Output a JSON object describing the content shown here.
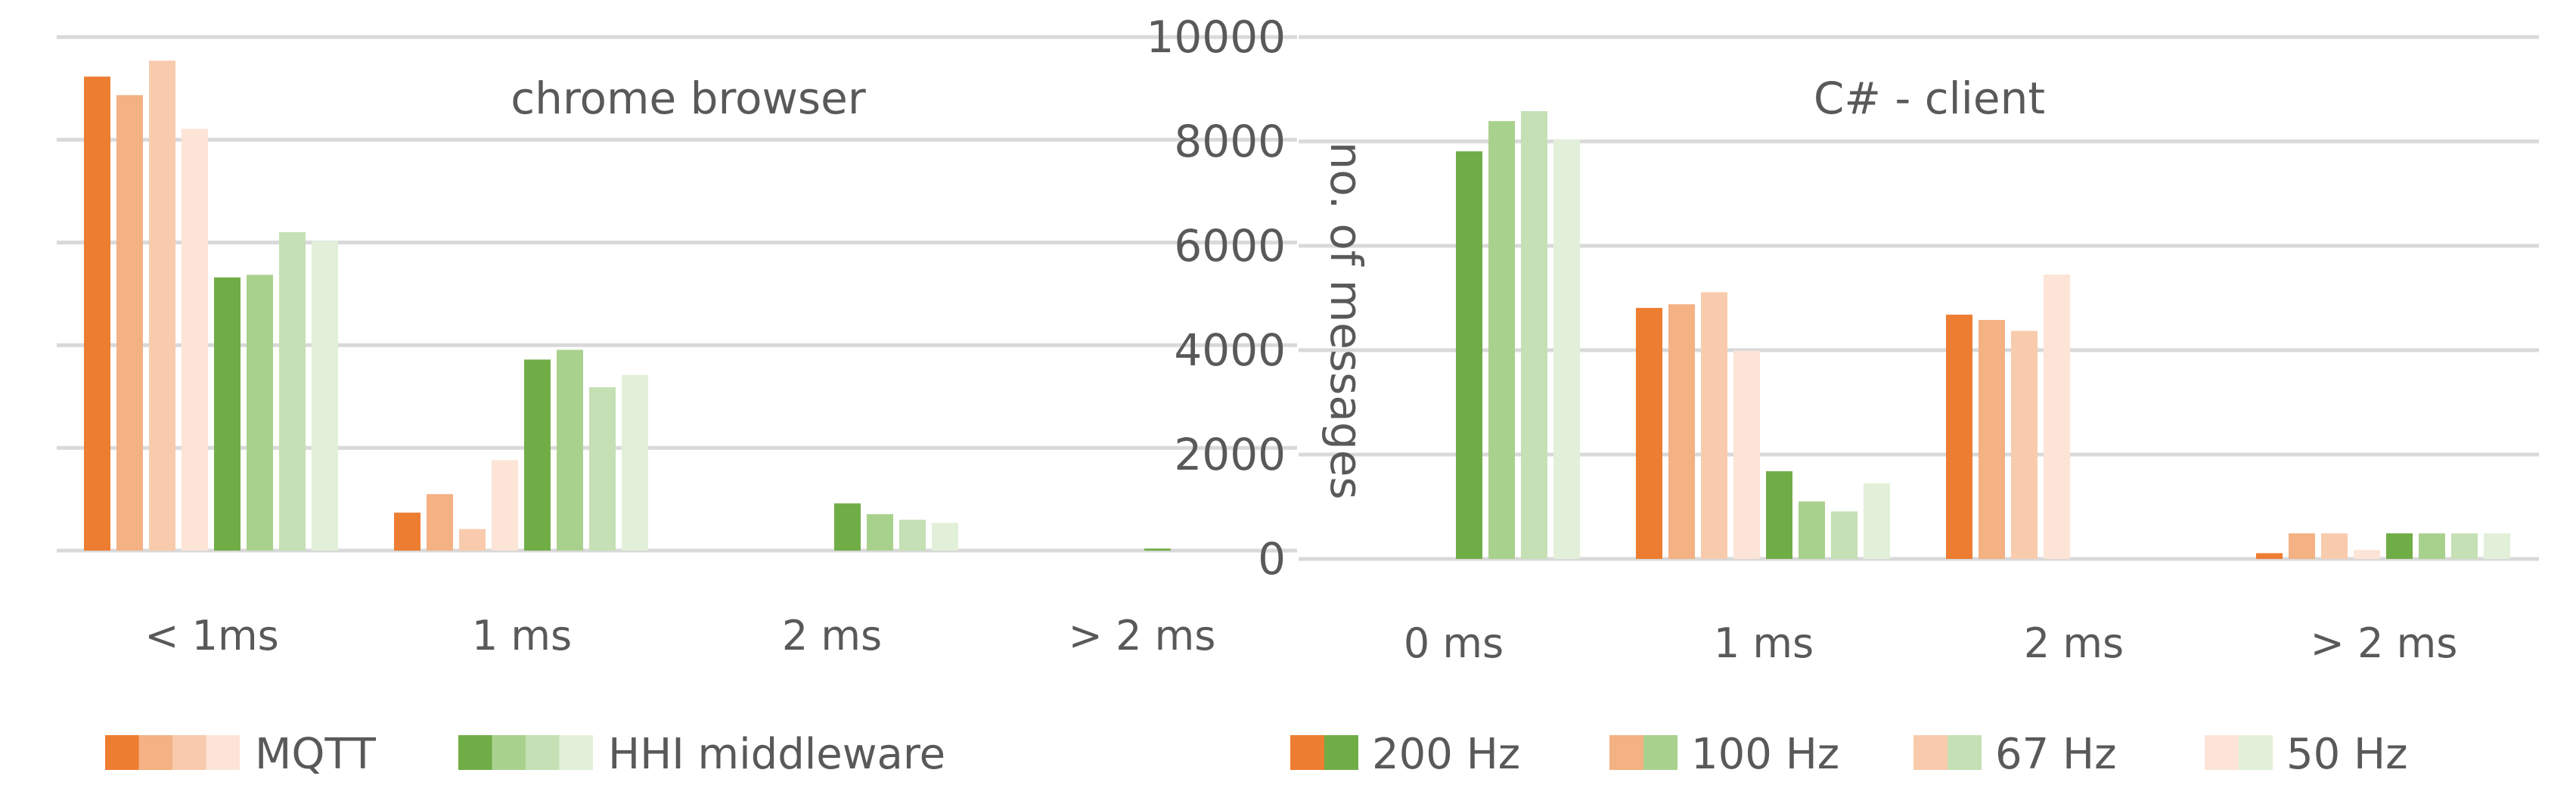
{
  "chart_data": [
    {
      "type": "bar",
      "title": "chrome browser",
      "categories": [
        "< 1ms",
        "1 ms",
        "2 ms",
        "> 2 ms"
      ],
      "ylim": [
        0,
        10000
      ],
      "grid": true,
      "series": [
        {
          "group": "MQTT",
          "rate": "200 Hz",
          "values": [
            9230,
            740,
            0,
            0
          ]
        },
        {
          "group": "MQTT",
          "rate": "100 Hz",
          "values": [
            8870,
            1100,
            0,
            0
          ]
        },
        {
          "group": "MQTT",
          "rate": "67 Hz",
          "values": [
            9540,
            420,
            0,
            0
          ]
        },
        {
          "group": "MQTT",
          "rate": "50 Hz",
          "values": [
            8210,
            1760,
            0,
            0
          ]
        },
        {
          "group": "HHI middleware",
          "rate": "200 Hz",
          "values": [
            5320,
            3720,
            920,
            40
          ]
        },
        {
          "group": "HHI middleware",
          "rate": "100 Hz",
          "values": [
            5370,
            3910,
            710,
            0
          ]
        },
        {
          "group": "HHI middleware",
          "rate": "67 Hz",
          "values": [
            6200,
            3180,
            600,
            0
          ]
        },
        {
          "group": "HHI middleware",
          "rate": "50 Hz",
          "values": [
            6030,
            3420,
            540,
            0
          ]
        }
      ]
    },
    {
      "type": "bar",
      "title": "C# - client",
      "categories": [
        "0 ms",
        "1 ms",
        "2 ms",
        "> 2 ms"
      ],
      "ylim": [
        0,
        10000
      ],
      "ylabel": "no. of messages",
      "yticks": [
        "0",
        "2000",
        "4000",
        "6000",
        "8000",
        "10000"
      ],
      "grid": true,
      "series": [
        {
          "group": "MQTT",
          "rate": "200 Hz",
          "values": [
            0,
            4810,
            4680,
            110
          ]
        },
        {
          "group": "MQTT",
          "rate": "100 Hz",
          "values": [
            0,
            4880,
            4580,
            490
          ]
        },
        {
          "group": "MQTT",
          "rate": "67 Hz",
          "values": [
            0,
            5110,
            4370,
            490
          ]
        },
        {
          "group": "MQTT",
          "rate": "50 Hz",
          "values": [
            0,
            3990,
            5450,
            170
          ]
        },
        {
          "group": "HHI middleware",
          "rate": "200 Hz",
          "values": [
            7810,
            1680,
            0,
            490
          ]
        },
        {
          "group": "HHI middleware",
          "rate": "100 Hz",
          "values": [
            8390,
            1100,
            0,
            490
          ]
        },
        {
          "group": "HHI middleware",
          "rate": "67 Hz",
          "values": [
            8580,
            910,
            0,
            490
          ]
        },
        {
          "group": "HHI middleware",
          "rate": "50 Hz",
          "values": [
            8030,
            1450,
            0,
            490
          ]
        }
      ]
    }
  ],
  "legend": {
    "groups": [
      {
        "label": "MQTT",
        "colors": [
          "#ED7D31",
          "#F4B183",
          "#F8CBAD",
          "#FCE4D6"
        ]
      },
      {
        "label": "HHI middleware",
        "colors": [
          "#70AD47",
          "#A9D18E",
          "#C5E0B4",
          "#E2F0D9"
        ]
      }
    ],
    "rates": [
      {
        "label": "200 Hz",
        "colors": [
          "#ED7D31",
          "#70AD47"
        ]
      },
      {
        "label": "100 Hz",
        "colors": [
          "#F4B183",
          "#A9D18E"
        ]
      },
      {
        "label": "67 Hz",
        "colors": [
          "#F8CBAD",
          "#C5E0B4"
        ]
      },
      {
        "label": "50 Hz",
        "colors": [
          "#FCE4D6",
          "#E2F0D9"
        ]
      }
    ]
  },
  "colors": {
    "series": [
      "#ED7D31",
      "#F4B183",
      "#F8CBAD",
      "#FCE4D6",
      "#70AD47",
      "#A9D18E",
      "#C5E0B4",
      "#E2F0D9"
    ],
    "grid": "#D9D9D9",
    "text": "#595959"
  }
}
